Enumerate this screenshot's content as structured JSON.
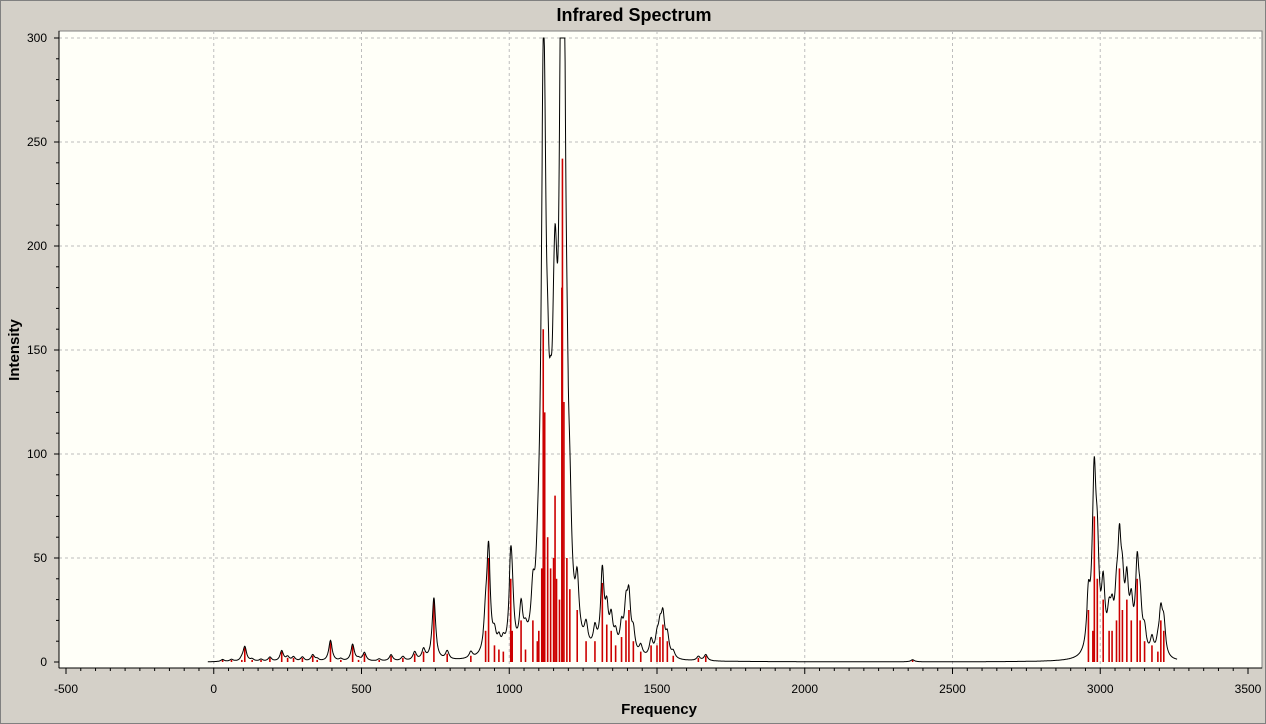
{
  "chart_data": {
    "type": "line",
    "title": "Infrared Spectrum",
    "xlabel": "Frequency",
    "ylabel": "Intensity",
    "xlim": [
      -500,
      3500
    ],
    "ylim": [
      0,
      300
    ],
    "x_ticks": [
      "-500",
      "0",
      "500",
      "1000",
      "1500",
      "2000",
      "2500",
      "3000",
      "3500"
    ],
    "y_ticks": [
      "0",
      "50",
      "100",
      "150",
      "200",
      "250",
      "300"
    ],
    "grid": true,
    "colors": {
      "spectrum": "#000000",
      "sticks": "#cc0000",
      "plot_bg": "#fffff8",
      "grid": "#bdbdbd"
    },
    "series": [
      {
        "type": "sticks",
        "x": [
          30,
          60,
          95,
          105,
          130,
          160,
          190,
          230,
          250,
          270,
          300,
          335,
          350,
          395,
          430,
          470,
          490,
          510,
          560,
          600,
          640,
          680,
          710,
          745,
          790,
          870,
          920,
          930,
          950,
          965,
          980,
          1005,
          1010,
          1040,
          1055,
          1080,
          1095,
          1100,
          1110,
          1115,
          1120,
          1130,
          1140,
          1150,
          1155,
          1160,
          1170,
          1178,
          1180,
          1185,
          1195,
          1205,
          1230,
          1260,
          1290,
          1315,
          1330,
          1345,
          1360,
          1380,
          1395,
          1405,
          1420,
          1445,
          1480,
          1500,
          1510,
          1520,
          1535,
          1555,
          1640,
          1665,
          2365,
          2960,
          2975,
          2980,
          2990,
          3010,
          3030,
          3040,
          3055,
          3065,
          3075,
          3090,
          3105,
          3125,
          3135,
          3150,
          3175,
          3195,
          3205,
          3215
        ],
        "y": [
          1,
          1,
          1,
          7,
          1,
          1,
          2,
          5,
          2,
          2,
          2,
          3,
          1,
          10,
          1,
          8,
          1,
          4,
          1,
          3,
          2,
          4,
          5,
          30,
          4,
          3,
          15,
          50,
          8,
          6,
          5,
          40,
          15,
          20,
          6,
          20,
          10,
          15,
          45,
          160,
          120,
          60,
          45,
          50,
          80,
          40,
          30,
          180,
          242,
          125,
          50,
          35,
          25,
          10,
          10,
          38,
          18,
          15,
          8,
          12,
          20,
          25,
          10,
          5,
          8,
          8,
          12,
          18,
          10,
          3,
          2,
          3,
          1,
          25,
          15,
          70,
          40,
          30,
          15,
          15,
          20,
          45,
          25,
          30,
          20,
          40,
          20,
          10,
          8,
          5,
          20,
          15
        ]
      }
    ]
  }
}
